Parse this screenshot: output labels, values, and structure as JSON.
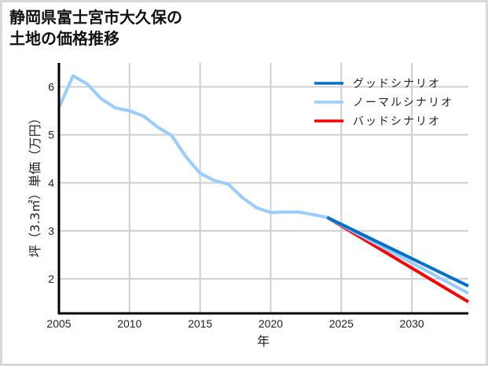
{
  "title": "静岡県富士宮市大久保の\n土地の価格推移",
  "chart_data": {
    "type": "line",
    "title": "静岡県富士宮市大久保の土地の価格推移",
    "xlabel": "年",
    "ylabel": "坪（3.3㎡）単価（万円）",
    "xlim": [
      2005,
      2034
    ],
    "ylim": [
      1.28,
      6.5
    ],
    "xticks": [
      2005,
      2010,
      2015,
      2020,
      2025,
      2030
    ],
    "yticks": [
      2,
      3,
      4,
      5,
      6
    ],
    "grid": true,
    "legend_position": "upper right",
    "series": [
      {
        "name": "グッドシナリオ",
        "color": "#0070c8",
        "x": [
          2024,
          2034
        ],
        "values": [
          3.28,
          1.85
        ]
      },
      {
        "name": "ノーマルシナリオ",
        "color": "#99ccff",
        "x": [
          2005,
          2006,
          2007,
          2008,
          2009,
          2010,
          2011,
          2012,
          2013,
          2014,
          2015,
          2016,
          2017,
          2018,
          2019,
          2020,
          2021,
          2022,
          2023,
          2024,
          2034
        ],
        "values": [
          5.57,
          6.23,
          6.06,
          5.75,
          5.56,
          5.5,
          5.39,
          5.16,
          4.98,
          4.54,
          4.2,
          4.05,
          3.97,
          3.69,
          3.48,
          3.38,
          3.39,
          3.39,
          3.34,
          3.28,
          1.7
        ]
      },
      {
        "name": "バッドシナリオ",
        "color": "#ff0000",
        "x": [
          2024,
          2034
        ],
        "values": [
          3.28,
          1.52
        ]
      }
    ]
  }
}
